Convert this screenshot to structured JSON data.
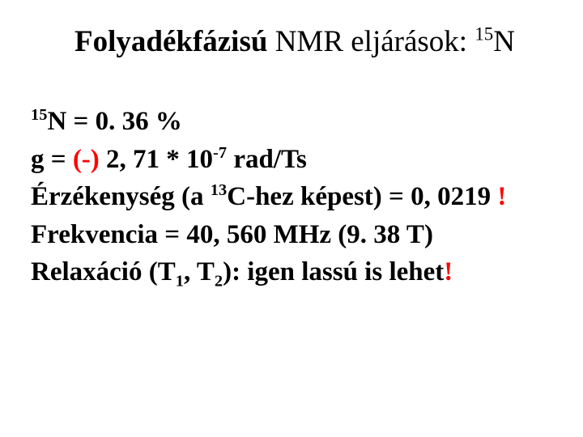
{
  "title": {
    "part1": "Folyadékfázisú",
    "part2": " NMR eljárások: ",
    "iso_sup": "15",
    "iso_sym": "N",
    "fontsize_pt": 37,
    "color": "#000000"
  },
  "lines": {
    "l1": {
      "sup": "15",
      "sym": "N",
      "rest": " = 0. 36 %"
    },
    "l2": {
      "gamma": "g",
      "a": " = ",
      "neg": "(-)",
      "b": " 2, 71  * 10",
      "exp": "-7",
      "c": " rad/Ts"
    },
    "l3": {
      "a": "Érzékenység (a ",
      "sup": "13",
      "sym": "C",
      "b": "-hez képest) = 0, 0219 ",
      "bang": "!"
    },
    "l4": {
      "text": "Frekvencia = 40, 560 MHz (9. 38 T)"
    },
    "l5": {
      "a": "Relaxáció (T",
      "s1": "1",
      "mid": ", T",
      "s2": "2",
      "b": "): igen lassú is lehet",
      "bang": "!"
    }
  },
  "style": {
    "body_fontsize_pt": 33,
    "body_fontweight": "bold",
    "red": "#ff0000",
    "black": "#000000",
    "background": "#ffffff",
    "font_family": "Times New Roman"
  }
}
